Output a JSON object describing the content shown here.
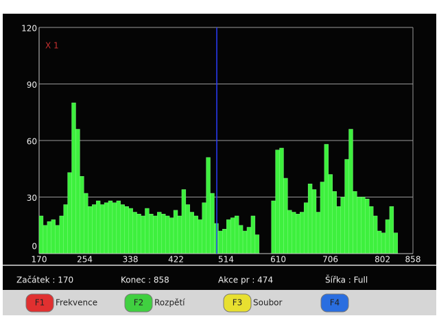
{
  "chart_data": {
    "type": "bar",
    "marker_label": "X 1",
    "x_start": 170,
    "x_step": 7.5,
    "bar_width": 7.5,
    "values": [
      20,
      15,
      17,
      18,
      15,
      20,
      26,
      43,
      80,
      66,
      41,
      32,
      25,
      26,
      28,
      26,
      27,
      28,
      27,
      28,
      26,
      25,
      24,
      22,
      21,
      20,
      24,
      21,
      20,
      22,
      21,
      20,
      19,
      23,
      20,
      34,
      26,
      22,
      20,
      18,
      27,
      51,
      32,
      16,
      12,
      13,
      18,
      19,
      20,
      15,
      12,
      14,
      20,
      10,
      0,
      0,
      0,
      28,
      55,
      56,
      40,
      23,
      22,
      21,
      22,
      27,
      37,
      34,
      22,
      38,
      58,
      42,
      33,
      25,
      30,
      50,
      66,
      33,
      30,
      30,
      29,
      25,
      20,
      12,
      11,
      18,
      25,
      11
    ],
    "color": "#3ef03e",
    "cursor_x": 497,
    "cursor_color": "#2a3cff",
    "xlim": [
      170,
      858
    ],
    "xticks": [
      170,
      254,
      338,
      422,
      514,
      610,
      706,
      802,
      858
    ],
    "ylim": [
      0,
      120
    ],
    "yticks": [
      0,
      30,
      60,
      90,
      120
    ],
    "grid": true
  },
  "status": [
    "Začátek : 170",
    "Konec : 858",
    "Akce pr : 474",
    "Šířka : Full"
  ],
  "buttons": [
    {
      "key": "F1",
      "label": "Frekvence",
      "color": "#e03030"
    },
    {
      "key": "F2",
      "label": "Rozpětí",
      "color": "#40d040"
    },
    {
      "key": "F3",
      "label": "Soubor",
      "color": "#e8e030"
    },
    {
      "key": "F4",
      "color": "#2a6ee0"
    }
  ]
}
